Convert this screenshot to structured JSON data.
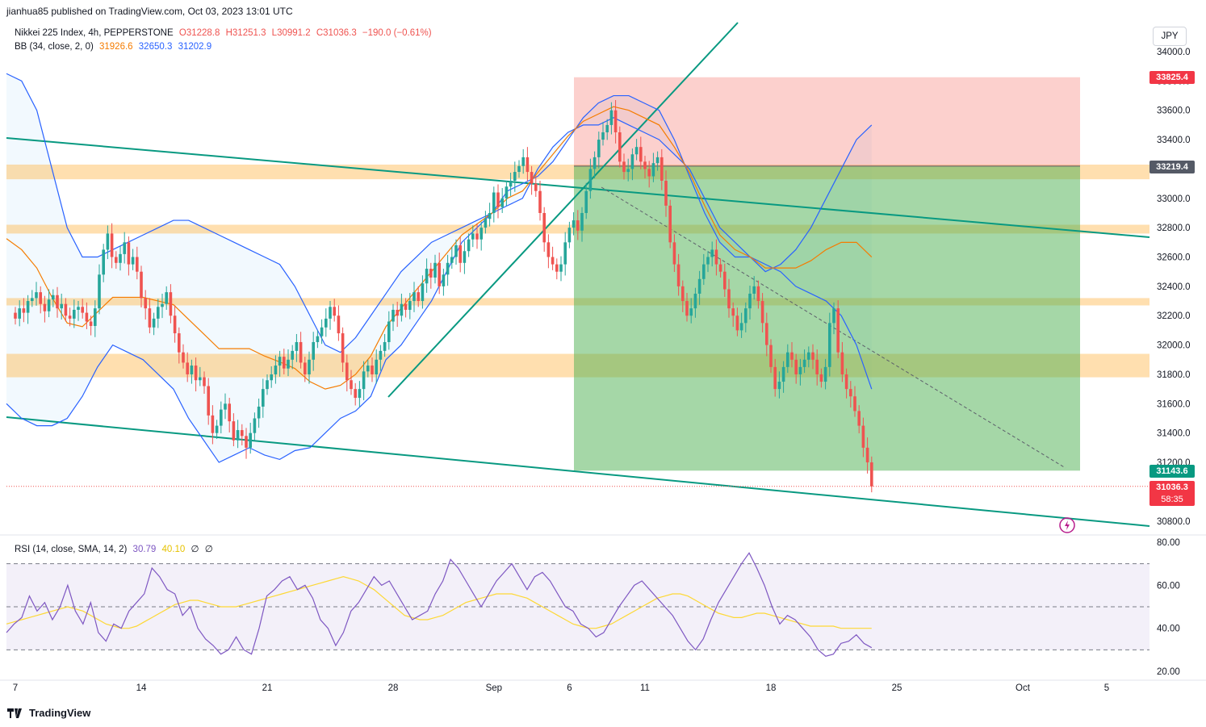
{
  "publisher": "jianhua85 published on TradingView.com, Oct 03, 2023 13:01 UTC",
  "brand": "TradingView",
  "currency": "JPY",
  "legend": {
    "symbol": "Nikkei 225 Index, 4h, PEPPERSTONE",
    "o": "O31228.8",
    "h": "H31251.3",
    "l": "L30991.2",
    "c": "C31036.3",
    "chg": "−190.0 (−0.61%)",
    "bb_title": "BB (34, close, 2, 0)",
    "bb_basis": "31926.6",
    "bb_upper": "32650.3",
    "bb_lower": "31202.9",
    "rsi_title": "RSI (14, close, SMA, 14, 2)",
    "rsi_value": "30.79",
    "rsi_sma": "40.10",
    "rsi_extra1": "∅",
    "rsi_extra2": "∅"
  },
  "price_tags": {
    "stop": "33825.4",
    "entry": "33219.4",
    "target": "31143.6",
    "last": "31036.3",
    "countdown": "58:35"
  },
  "colors": {
    "up": "#26a69a",
    "down": "#ef5350",
    "bb_basis": "#f57c00",
    "bb_band": "#2962ff",
    "rsi": "#7e57c2",
    "rsi_sma": "#fdd835",
    "trendline": "#089981",
    "zone": "#ffb74d",
    "profit": "#4caf50",
    "loss": "#f44336"
  },
  "chart_data": [
    {
      "type": "candlestick",
      "title": "Nikkei 225 Index, 4h, PEPPERSTONE",
      "y_ticks": [
        34000,
        33800,
        33600,
        33400,
        33200,
        33000,
        32800,
        32600,
        32400,
        32200,
        32000,
        31800,
        31600,
        31400,
        31200,
        31000,
        30800
      ],
      "y_tick_labels": [
        "34000.0",
        "33800.0",
        "33600.0",
        "33400.0",
        "33200.0",
        "33000.0",
        "32800.0",
        "32600.0",
        "32400.0",
        "32200.0",
        "32000.0",
        "31800.0",
        "31600.0",
        "31400.0",
        "31200.0",
        "31000.0",
        "30800.0"
      ],
      "x_labels": [
        {
          "label": "7",
          "bar": 0
        },
        {
          "label": "14",
          "bar": 30
        },
        {
          "label": "21",
          "bar": 60
        },
        {
          "label": "28",
          "bar": 90
        },
        {
          "label": "Sep",
          "bar": 114
        },
        {
          "label": "6",
          "bar": 132
        },
        {
          "label": "11",
          "bar": 150
        },
        {
          "label": "18",
          "bar": 180
        },
        {
          "label": "25",
          "bar": 210
        },
        {
          "label": "Oct",
          "bar": 240
        },
        {
          "label": "5",
          "bar": 260
        }
      ],
      "ylim": [
        30700,
        34100
      ],
      "closes": [
        32180,
        32250,
        32220,
        32300,
        32320,
        32360,
        32280,
        32230,
        32310,
        32340,
        32250,
        32280,
        32200,
        32180,
        32240,
        32260,
        32220,
        32160,
        32130,
        32250,
        32480,
        32650,
        32760,
        32600,
        32560,
        32620,
        32700,
        32550,
        32600,
        32500,
        32320,
        32250,
        32120,
        32180,
        32260,
        32280,
        32360,
        32200,
        32080,
        31950,
        31880,
        31800,
        31860,
        31760,
        31780,
        31720,
        31520,
        31400,
        31450,
        31560,
        31600,
        31480,
        31350,
        31420,
        31380,
        31300,
        31400,
        31500,
        31580,
        31700,
        31760,
        31800,
        31860,
        31920,
        31840,
        31900,
        31960,
        32020,
        31880,
        31800,
        31900,
        32020,
        32060,
        32120,
        32180,
        32260,
        32200,
        32080,
        31880,
        31760,
        31700,
        31640,
        31700,
        31820,
        31860,
        31800,
        31900,
        31960,
        32020,
        32160,
        32240,
        32200,
        32280,
        32240,
        32300,
        32360,
        32300,
        32420,
        32520,
        32460,
        32560,
        32400,
        32480,
        32560,
        32600,
        32680,
        32560,
        32640,
        32720,
        32760,
        32720,
        32800,
        32860,
        32900,
        33040,
        32940,
        33000,
        33080,
        33120,
        33180,
        33220,
        33280,
        33180,
        33100,
        33050,
        32900,
        32700,
        32600,
        32550,
        32500,
        32550,
        32700,
        32800,
        32850,
        32780,
        32900,
        33050,
        33200,
        33280,
        33400,
        33450,
        33500,
        33600,
        33450,
        33250,
        33180,
        33200,
        33300,
        33350,
        33250,
        33200,
        33150,
        33240,
        33280,
        33120,
        32950,
        32700,
        32550,
        32400,
        32300,
        32200,
        32250,
        32350,
        32450,
        32550,
        32600,
        32650,
        32550,
        32500,
        32380,
        32250,
        32200,
        32100,
        32150,
        32250,
        32350,
        32400,
        32300,
        32150,
        32000,
        31850,
        31700,
        31750,
        31850,
        31950,
        31900,
        31800,
        31850,
        31900,
        31950,
        31900,
        31800,
        31750,
        31850,
        32150,
        32250,
        31950,
        31800,
        31700,
        31650,
        31550,
        31450,
        31300,
        31200,
        31036
      ],
      "bb_upper": [
        33850,
        33800,
        33600,
        33200,
        32800,
        32600,
        32600,
        32650,
        32700,
        32750,
        32800,
        32850,
        32850,
        32800,
        32750,
        32700,
        32650,
        32600,
        32550,
        32400,
        32200,
        32000,
        31950,
        32050,
        32200,
        32350,
        32500,
        32600,
        32700,
        32750,
        32800,
        32850,
        32900,
        32950,
        33000,
        33200,
        33350,
        33450,
        33500,
        33500,
        33550,
        33500,
        33450,
        33400,
        33300,
        33200,
        33000,
        32800,
        32700,
        32600,
        32500,
        32550,
        32650,
        32800,
        33000,
        33200,
        33400,
        33500
      ],
      "bb_lower": [
        31600,
        31500,
        31450,
        31450,
        31500,
        31650,
        31850,
        32000,
        31950,
        31900,
        31800,
        31700,
        31500,
        31350,
        31200,
        31250,
        31300,
        31250,
        31220,
        31280,
        31300,
        31400,
        31500,
        31550,
        31650,
        31900,
        32000,
        32150,
        32300,
        32500,
        32700,
        32800,
        32900,
        33050,
        33100,
        33150,
        33250,
        33400,
        33550,
        33650,
        33700,
        33700,
        33650,
        33600,
        33400,
        33150,
        32900,
        32700,
        32600,
        32600,
        32550,
        32500,
        32400,
        32350,
        32300,
        32200,
        32000,
        31700
      ]
    },
    {
      "type": "line",
      "title": "RSI (14, close, SMA, 14, 2)",
      "y_ticks": [
        80,
        60,
        40,
        20
      ],
      "y_tick_labels": [
        "80.00",
        "60.00",
        "40.00",
        "20.00"
      ],
      "levels": [
        70,
        50,
        30
      ],
      "ylim": [
        17,
        82
      ],
      "rsi": [
        38,
        42,
        45,
        55,
        48,
        52,
        44,
        50,
        60,
        48,
        42,
        52,
        38,
        34,
        42,
        40,
        48,
        52,
        56,
        68,
        64,
        58,
        56,
        46,
        50,
        40,
        35,
        32,
        28,
        30,
        36,
        30,
        28,
        40,
        55,
        58,
        62,
        64,
        58,
        60,
        54,
        44,
        40,
        32,
        38,
        48,
        52,
        58,
        64,
        60,
        62,
        56,
        50,
        44,
        46,
        48,
        56,
        62,
        72,
        68,
        62,
        56,
        50,
        56,
        62,
        66,
        70,
        64,
        58,
        64,
        66,
        62,
        56,
        50,
        48,
        42,
        40,
        36,
        38,
        44,
        50,
        55,
        60,
        62,
        58,
        54,
        50,
        46,
        40,
        34,
        30,
        35,
        44,
        52,
        58,
        64,
        70,
        75,
        68,
        60,
        50,
        42,
        46,
        44,
        40,
        36,
        30,
        27,
        28,
        33,
        34,
        37,
        33,
        31
      ],
      "rsi_sma": [
        42,
        43,
        44,
        45,
        46,
        47,
        48,
        49,
        50,
        49,
        48,
        46,
        44,
        42,
        41,
        40,
        40,
        41,
        43,
        45,
        47,
        49,
        51,
        52,
        53,
        53,
        52,
        51,
        50,
        50,
        50,
        51,
        52,
        53,
        54,
        55,
        56,
        57,
        58,
        59,
        60,
        61,
        62,
        63,
        64,
        63,
        62,
        60,
        58,
        55,
        52,
        49,
        46,
        45,
        44,
        44,
        45,
        46,
        48,
        50,
        52,
        53,
        54,
        55,
        56,
        56,
        56,
        55,
        54,
        52,
        50,
        48,
        46,
        44,
        42,
        41,
        40,
        40,
        41,
        42,
        44,
        46,
        48,
        50,
        52,
        54,
        55,
        56,
        56,
        55,
        53,
        51,
        49,
        47,
        46,
        45,
        45,
        46,
        47,
        47,
        46,
        45,
        44,
        43,
        42,
        41,
        41,
        41,
        41,
        40,
        40,
        40,
        40,
        40
      ]
    }
  ]
}
